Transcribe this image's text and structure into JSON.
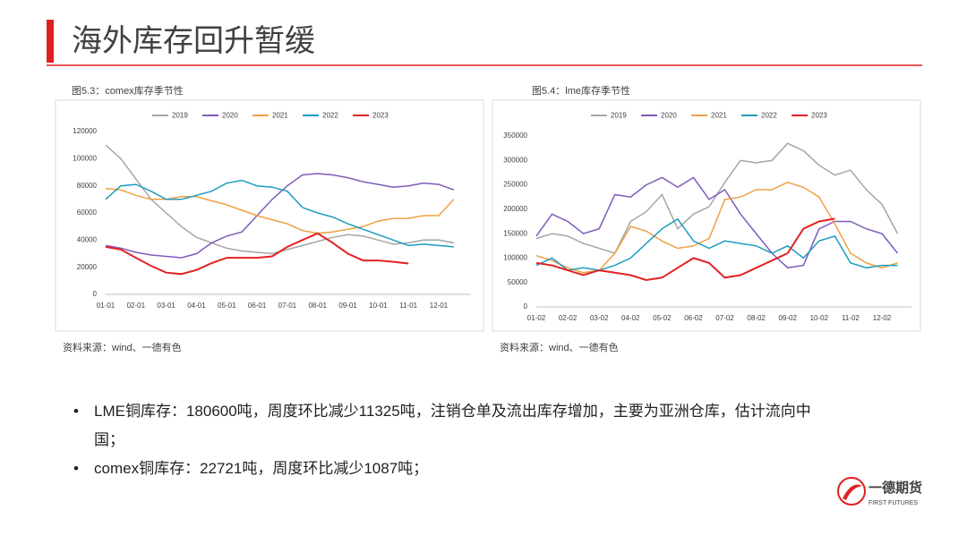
{
  "header": {
    "title": "海外库存回升暂缓"
  },
  "chart_data": [
    {
      "type": "line",
      "title": "图5.3：comex库存季节性",
      "source": "资料来源：wind、一德有色",
      "categories": [
        "01-01",
        null,
        "02-01",
        null,
        "03-01",
        null,
        "04-01",
        null,
        "05-01",
        null,
        "06-01",
        null,
        "07-01",
        null,
        "08-01",
        null,
        "09-01",
        null,
        "10-01",
        null,
        "11-01",
        null,
        "12-01",
        null
      ],
      "ylim": [
        0,
        120000
      ],
      "yticks": [
        0,
        20000,
        40000,
        60000,
        80000,
        100000,
        120000
      ],
      "grid": false,
      "series": [
        {
          "name": "2019",
          "color": "#a5a5a5",
          "values": [
            110000,
            100000,
            85000,
            70000,
            60000,
            50000,
            42000,
            38000,
            34000,
            32000,
            31000,
            30000,
            33000,
            36000,
            39000,
            42000,
            44000,
            43000,
            40000,
            37000,
            38000,
            40000,
            40000,
            38000
          ]
        },
        {
          "name": "2020",
          "color": "#7e5cb8",
          "values": [
            36000,
            34000,
            31000,
            29000,
            28000,
            27000,
            30000,
            38000,
            43000,
            46000,
            58000,
            70000,
            80000,
            88000,
            89000,
            88000,
            86000,
            83000,
            81000,
            79000,
            80000,
            82000,
            81000,
            77000
          ]
        },
        {
          "name": "2021",
          "color": "#f0a040",
          "values": [
            78000,
            77000,
            73000,
            70000,
            70000,
            72000,
            72000,
            69000,
            66000,
            62000,
            58000,
            55000,
            52000,
            47000,
            45000,
            46000,
            48000,
            50000,
            54000,
            56000,
            56000,
            58000,
            58000,
            70000
          ]
        },
        {
          "name": "2022",
          "color": "#1c9cc0",
          "values": [
            70000,
            80000,
            81000,
            76000,
            70000,
            70000,
            73000,
            76000,
            82000,
            84000,
            80000,
            79000,
            76000,
            64000,
            60000,
            57000,
            52000,
            48000,
            44000,
            40000,
            36000,
            37000,
            36000,
            35000
          ]
        },
        {
          "name": "2023",
          "color": "#e32222",
          "values": [
            35000,
            33000,
            27000,
            21000,
            16000,
            15000,
            18000,
            23000,
            27000,
            27000,
            27000,
            28000,
            35000,
            40000,
            45000,
            38000,
            30000,
            25000,
            25000,
            24000,
            22721,
            null,
            null,
            null
          ]
        }
      ]
    },
    {
      "type": "line",
      "title": "图5.4：lme库存季节性",
      "source": "资料来源：wind、一德有色",
      "categories": [
        "01-02",
        null,
        "02-02",
        null,
        "03-02",
        null,
        "04-02",
        null,
        "05-02",
        null,
        "06-02",
        null,
        "07-02",
        null,
        "08-02",
        null,
        "09-02",
        null,
        "10-02",
        null,
        "11-02",
        null,
        "12-02",
        null
      ],
      "ylim": [
        0,
        350000
      ],
      "yticks": [
        0,
        50000,
        100000,
        150000,
        200000,
        250000,
        300000,
        350000
      ],
      "grid": false,
      "series": [
        {
          "name": "2019",
          "color": "#a5a5a5",
          "values": [
            140000,
            150000,
            145000,
            130000,
            120000,
            110000,
            175000,
            195000,
            230000,
            160000,
            190000,
            205000,
            255000,
            300000,
            295000,
            300000,
            335000,
            320000,
            290000,
            270000,
            280000,
            240000,
            210000,
            150000
          ]
        },
        {
          "name": "2020",
          "color": "#7e5cb8",
          "values": [
            145000,
            190000,
            175000,
            150000,
            160000,
            230000,
            225000,
            250000,
            265000,
            245000,
            265000,
            220000,
            240000,
            190000,
            150000,
            110000,
            80000,
            85000,
            160000,
            175000,
            175000,
            160000,
            150000,
            110000
          ]
        },
        {
          "name": "2021",
          "color": "#f0a040",
          "values": [
            105000,
            95000,
            80000,
            70000,
            75000,
            110000,
            165000,
            155000,
            135000,
            120000,
            125000,
            140000,
            220000,
            225000,
            240000,
            240000,
            255000,
            245000,
            225000,
            170000,
            110000,
            90000,
            80000,
            90000
          ]
        },
        {
          "name": "2022",
          "color": "#1c9cc0",
          "values": [
            85000,
            100000,
            75000,
            80000,
            75000,
            85000,
            100000,
            130000,
            160000,
            180000,
            135000,
            120000,
            135000,
            130000,
            125000,
            110000,
            125000,
            100000,
            135000,
            145000,
            90000,
            80000,
            85000,
            85000
          ]
        },
        {
          "name": "2023",
          "color": "#e32222",
          "values": [
            90000,
            85000,
            75000,
            65000,
            75000,
            70000,
            65000,
            55000,
            60000,
            80000,
            100000,
            90000,
            60000,
            65000,
            80000,
            95000,
            110000,
            160000,
            175000,
            180600,
            null,
            null,
            null,
            null
          ]
        }
      ]
    }
  ],
  "bullets": [
    "LME铜库存：180600吨，周度环比减少11325吨，注销仓单及流出库存增加，主要为亚洲仓库，估计流向中国；",
    "comex铜库存：22721吨，周度环比减少1087吨；"
  ],
  "logo": {
    "name": "一德期货",
    "subtitle": "FIRST FUTURES"
  }
}
